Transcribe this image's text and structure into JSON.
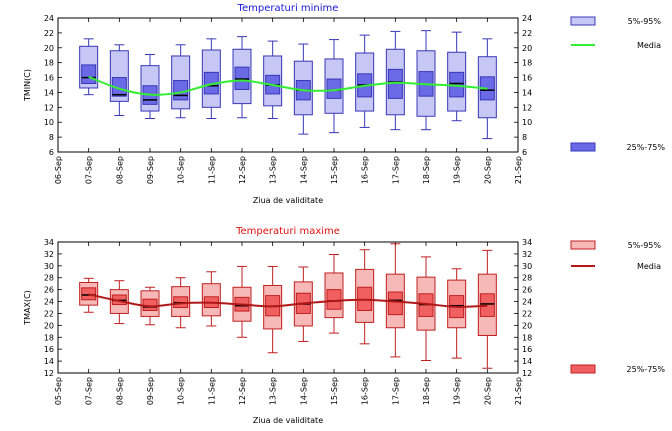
{
  "chart_data": [
    {
      "type": "boxplot",
      "title": "Temperaturi minime",
      "title_color": "#1a1ad6",
      "xlabel": "Ziua de validitate",
      "ylabel": "TMIN(C)",
      "ylim": [
        6,
        24
      ],
      "yticks": [
        6,
        8,
        10,
        12,
        14,
        16,
        18,
        20,
        22,
        24
      ],
      "x_ticks": [
        "06-Sep",
        "07-Sep",
        "08-Sep",
        "09-Sep",
        "10-Sep",
        "11-Sep",
        "12-Sep",
        "13-Sep",
        "14-Sep",
        "15-Sep",
        "16-Sep",
        "17-Sep",
        "18-Sep",
        "19-Sep",
        "20-Sep",
        "21-Sep"
      ],
      "categories": [
        "07-Sep",
        "08-Sep",
        "09-Sep",
        "10-Sep",
        "11-Sep",
        "12-Sep",
        "13-Sep",
        "14-Sep",
        "15-Sep",
        "16-Sep",
        "17-Sep",
        "18-Sep",
        "19-Sep",
        "20-Sep"
      ],
      "p5": [
        14.6,
        12.8,
        11.5,
        11.8,
        12.0,
        12.5,
        12.2,
        11.0,
        11.2,
        11.5,
        11.0,
        10.8,
        11.5,
        10.6
      ],
      "p25": [
        15.2,
        13.5,
        12.4,
        13.0,
        13.8,
        14.4,
        13.8,
        13.0,
        13.2,
        13.4,
        13.2,
        13.5,
        13.4,
        13.0
      ],
      "median": [
        16.0,
        13.7,
        13.0,
        13.6,
        14.9,
        15.8,
        15.0,
        14.3,
        14.3,
        15.0,
        15.4,
        15.1,
        15.2,
        14.3
      ],
      "p75": [
        17.7,
        16.0,
        14.9,
        15.6,
        16.7,
        17.4,
        16.3,
        15.6,
        15.8,
        16.5,
        17.1,
        16.8,
        16.7,
        16.1
      ],
      "p95": [
        20.2,
        19.6,
        17.6,
        18.9,
        19.7,
        19.8,
        18.9,
        18.2,
        18.5,
        19.3,
        19.8,
        19.6,
        19.4,
        18.8
      ],
      "whisker_low": [
        13.7,
        10.9,
        10.5,
        10.6,
        10.5,
        10.6,
        10.5,
        8.4,
        8.6,
        9.3,
        9.0,
        9.0,
        10.2,
        7.8
      ],
      "whisker_high": [
        21.2,
        20.4,
        19.1,
        20.4,
        21.2,
        21.5,
        20.9,
        20.5,
        21.1,
        21.7,
        22.2,
        22.3,
        22.1,
        21.2
      ],
      "mean_line": [
        16.1,
        14.5,
        13.7,
        14.0,
        15.1,
        15.6,
        15.0,
        14.3,
        14.3,
        14.9,
        15.3,
        15.1,
        14.9,
        14.5
      ],
      "colors": {
        "box_outer": "#c7c7f5",
        "box_inner": "#6a6ae6",
        "border": "#3838b8",
        "mean": "#33ee33",
        "median": "#000000"
      },
      "legend": {
        "items": [
          "5%-95%",
          "Media",
          "25%-75%"
        ]
      }
    },
    {
      "type": "boxplot",
      "title": "Temperaturi maxime",
      "title_color": "#e01010",
      "xlabel": "Ziua de validitate",
      "ylabel": "TMAX(C)",
      "ylim": [
        12,
        34
      ],
      "yticks": [
        12,
        14,
        16,
        18,
        20,
        22,
        24,
        26,
        28,
        30,
        32,
        34
      ],
      "x_ticks": [
        "05-Sep",
        "07-Sep",
        "08-Sep",
        "09-Sep",
        "10-Sep",
        "11-Sep",
        "12-Sep",
        "13-Sep",
        "14-Sep",
        "15-Sep",
        "16-Sep",
        "17-Sep",
        "18-Sep",
        "19-Sep",
        "20-Sep",
        "21-Sep"
      ],
      "categories": [
        "07-Sep",
        "08-Sep",
        "09-Sep",
        "10-Sep",
        "11-Sep",
        "12-Sep",
        "13-Sep",
        "14-Sep",
        "15-Sep",
        "16-Sep",
        "17-Sep",
        "18-Sep",
        "19-Sep",
        "20-Sep"
      ],
      "p5": [
        23.4,
        22.0,
        21.5,
        21.5,
        21.6,
        20.7,
        19.4,
        19.9,
        21.3,
        20.5,
        19.6,
        19.2,
        19.6,
        18.3
      ],
      "p25": [
        24.3,
        23.5,
        22.5,
        23.0,
        23.0,
        22.4,
        21.6,
        22.0,
        22.7,
        22.5,
        21.8,
        21.5,
        21.3,
        21.5
      ],
      "median": [
        25.1,
        24.2,
        23.1,
        23.8,
        23.8,
        23.3,
        23.2,
        23.6,
        24.1,
        24.3,
        24.2,
        23.5,
        23.3,
        23.6
      ],
      "p75": [
        26.3,
        25.1,
        24.4,
        24.8,
        24.8,
        24.7,
        25.0,
        25.4,
        26.0,
        26.4,
        25.6,
        25.3,
        25.0,
        25.3
      ],
      "p95": [
        27.2,
        26.0,
        25.8,
        26.5,
        27.0,
        26.4,
        26.7,
        27.3,
        28.8,
        29.4,
        28.6,
        28.1,
        27.6,
        28.6
      ],
      "whisker_low": [
        22.2,
        20.3,
        20.1,
        19.6,
        19.9,
        18.0,
        15.4,
        17.3,
        18.7,
        16.9,
        14.7,
        14.1,
        14.5,
        12.8
      ],
      "whisker_high": [
        27.9,
        27.5,
        26.4,
        28.0,
        29.0,
        29.9,
        29.9,
        29.8,
        31.9,
        32.7,
        33.7,
        31.5,
        29.5,
        32.6
      ],
      "mean_line": [
        25.2,
        24.1,
        23.2,
        23.7,
        23.8,
        23.5,
        23.2,
        23.7,
        24.1,
        24.3,
        24.0,
        23.6,
        23.1,
        23.3
      ],
      "colors": {
        "box_outer": "#f7b8b8",
        "box_inner": "#f06060",
        "border": "#c02020",
        "mean": "#b01818",
        "median": "#000000"
      },
      "legend": {
        "items": [
          "5%-95%",
          "Media",
          "25%-75%"
        ]
      }
    }
  ]
}
